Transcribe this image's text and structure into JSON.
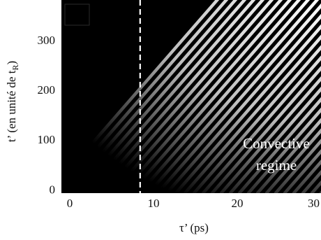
{
  "chart_data": {
    "type": "heatmap",
    "xlabel": "τ’ (ps)",
    "ylabel_main": "t’ (en unité de t",
    "ylabel_sub": "R",
    "ylabel_close": ")",
    "xlim": [
      -1,
      30
    ],
    "ylim": [
      -8,
      380
    ],
    "x_ticks": [
      0,
      10,
      20,
      30
    ],
    "y_ticks": [
      0,
      100,
      200,
      300
    ],
    "dashed_line_x": 8.4,
    "annotation_line1": "Convective",
    "annotation_line2": "regime",
    "stripes": {
      "direction": "diagonal",
      "color": "#ffffff",
      "background": "#000000"
    }
  }
}
